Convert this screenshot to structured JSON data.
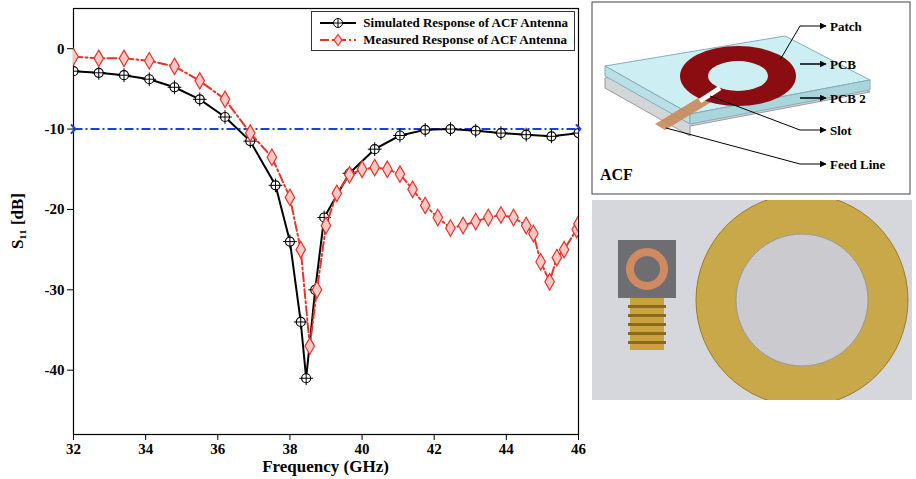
{
  "chart_data": {
    "type": "line",
    "x_label": "Frequency (GHz)",
    "y_label": "S₁₁ [dB]",
    "xlim": [
      32,
      46
    ],
    "xticks": [
      32,
      34,
      36,
      38,
      40,
      42,
      44,
      46
    ],
    "ylim": [
      -48,
      5
    ],
    "yticks": [
      -40,
      -30,
      -20,
      -10,
      0
    ],
    "grid": false,
    "legend": "top-right",
    "series": [
      {
        "name": "Simulated Response of ACF Antenna",
        "color": "#000000",
        "marker": "circle-plus",
        "line_style": "solid",
        "x": [
          32,
          32.7,
          33.4,
          34.1,
          34.8,
          35.5,
          36.2,
          36.9,
          37.6,
          38.0,
          38.3,
          38.45,
          38.7,
          38.95,
          39.65,
          40.35,
          41.05,
          41.75,
          42.45,
          43.15,
          43.85,
          44.55,
          45.25,
          46
        ],
        "values": [
          -2.8,
          -3.0,
          -3.3,
          -3.8,
          -4.8,
          -6.3,
          -8.5,
          -11.5,
          -17.0,
          -24.0,
          -34.0,
          -41.0,
          -30.0,
          -21.0,
          -15.5,
          -12.5,
          -10.8,
          -10.1,
          -10.0,
          -10.2,
          -10.5,
          -10.7,
          -10.9,
          -10.5
        ]
      },
      {
        "name": "Measured Response of ACF Antenna",
        "color": "#e8332a",
        "marker": "diamond",
        "line_style": "dashdot",
        "x": [
          32,
          32.7,
          33.4,
          34.1,
          34.8,
          35.5,
          36.2,
          36.9,
          37.5,
          38.0,
          38.3,
          38.55,
          38.75,
          39.0,
          39.3,
          39.65,
          40.0,
          40.35,
          40.7,
          41.05,
          41.4,
          41.75,
          42.1,
          42.45,
          42.8,
          43.15,
          43.5,
          43.85,
          44.2,
          44.55,
          44.75,
          44.95,
          45.2,
          45.4,
          45.6,
          45.95,
          46
        ],
        "values": [
          -1.0,
          -1.2,
          -1.2,
          -1.5,
          -2.2,
          -4.0,
          -6.3,
          -10.5,
          -13.5,
          -18.5,
          -25.0,
          -37.0,
          -30.0,
          -22.0,
          -18.0,
          -15.7,
          -15.0,
          -14.8,
          -15.0,
          -15.6,
          -17.5,
          -19.5,
          -21.0,
          -22.3,
          -22.0,
          -21.5,
          -21.0,
          -20.7,
          -21.0,
          -22.0,
          -23.0,
          -26.5,
          -29.0,
          -26.0,
          -25.0,
          -22.5,
          -21.8
        ]
      }
    ],
    "reference_lines": [
      {
        "y": -10,
        "color": "#1f3ee0",
        "line_style": "dashdot"
      }
    ]
  },
  "diagram": {
    "panel_label": "ACF",
    "labels": [
      "Patch",
      "PCB",
      "PCB 2",
      "Slot",
      "Feed Line"
    ]
  }
}
